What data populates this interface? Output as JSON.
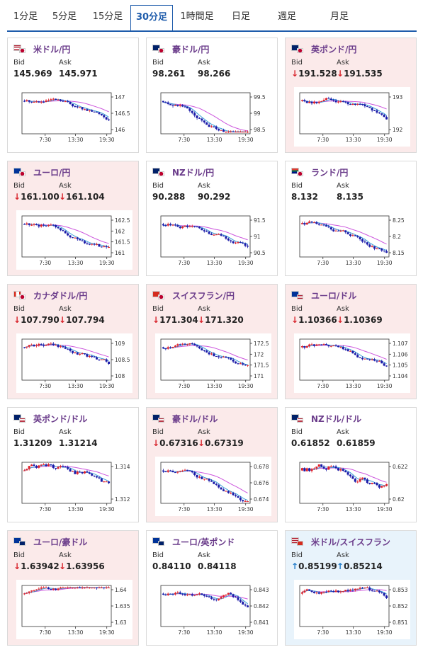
{
  "tabs": [
    {
      "label": "1分足",
      "active": false
    },
    {
      "label": "5分足",
      "active": false
    },
    {
      "label": "15分足",
      "active": false
    },
    {
      "label": "30分足",
      "active": true
    },
    {
      "label": "1時間足",
      "active": false
    },
    {
      "label": "日足",
      "active": false
    },
    {
      "label": "週足",
      "active": false
    },
    {
      "label": "月足",
      "active": false
    }
  ],
  "labels": {
    "bid": "Bid",
    "ask": "Ask"
  },
  "colors": {
    "accent": "#1f5cab",
    "title": "#6a3b8a",
    "down_bg": "#fbeaea",
    "up_bg": "#e8f3fb",
    "down_arrow": "#d8242c",
    "up_arrow": "#1f7ac8",
    "candle_up": "#e0202a",
    "candle_down": "#1a1aa8",
    "ma_short": "#3aa0d8",
    "ma_long": "#cc55dd"
  },
  "cards": [
    {
      "pair": "米ドル/円",
      "flag": "us-jp-flag-icon",
      "state": "none",
      "bid": "145.969",
      "ask": "145.971",
      "yticks": [
        "147",
        "146.5",
        "146"
      ],
      "xticks": [
        "7:30",
        "13:30",
        "19:30"
      ]
    },
    {
      "pair": "豪ドル/円",
      "flag": "au-jp-flag-icon",
      "state": "none",
      "bid": "98.261",
      "ask": "98.266",
      "yticks": [
        "99.5",
        "99",
        "98.5"
      ],
      "xticks": [
        "7:30",
        "13:30",
        "19:30"
      ]
    },
    {
      "pair": "英ポンド/円",
      "flag": "gb-jp-flag-icon",
      "state": "down",
      "bid": "191.528",
      "ask": "191.535",
      "yticks": [
        "193",
        "192"
      ],
      "xticks": [
        "7:30",
        "13:30",
        "19:30"
      ]
    },
    {
      "pair": "ユーロ/円",
      "flag": "eu-jp-flag-icon",
      "state": "down",
      "bid": "161.100",
      "ask": "161.104",
      "yticks": [
        "162.5",
        "162",
        "161.5",
        "161"
      ],
      "xticks": [
        "7:30",
        "13:30",
        "19:30"
      ]
    },
    {
      "pair": "NZドル/円",
      "flag": "nz-jp-flag-icon",
      "state": "none",
      "bid": "90.288",
      "ask": "90.292",
      "yticks": [
        "91.5",
        "91",
        "90.5"
      ],
      "xticks": [
        "7:30",
        "13:30",
        "19:30"
      ]
    },
    {
      "pair": "ランド/円",
      "flag": "za-jp-flag-icon",
      "state": "none",
      "bid": "8.132",
      "ask": "8.135",
      "yticks": [
        "8.25",
        "8.2",
        "8.15"
      ],
      "xticks": [
        "7:30",
        "13:30",
        "19:30"
      ]
    },
    {
      "pair": "カナダドル/円",
      "flag": "ca-jp-flag-icon",
      "state": "down",
      "bid": "107.790",
      "ask": "107.794",
      "yticks": [
        "109",
        "108.5",
        "108"
      ],
      "xticks": [
        "7:30",
        "13:30",
        "19:30"
      ]
    },
    {
      "pair": "スイスフラン/円",
      "flag": "ch-jp-flag-icon",
      "state": "down",
      "bid": "171.304",
      "ask": "171.320",
      "yticks": [
        "172.5",
        "172",
        "171.5",
        "171"
      ],
      "xticks": [
        "7:30",
        "13:30",
        "19:30"
      ]
    },
    {
      "pair": "ユーロ/ドル",
      "flag": "eu-us-flag-icon",
      "state": "down",
      "bid": "1.10366",
      "ask": "1.10369",
      "yticks": [
        "1.107",
        "1.106",
        "1.105",
        "1.104"
      ],
      "xticks": [
        "7:30",
        "13:30",
        "19:30"
      ]
    },
    {
      "pair": "英ポンド/ドル",
      "flag": "gb-us-flag-icon",
      "state": "none",
      "bid": "1.31209",
      "ask": "1.31214",
      "yticks": [
        "1.314",
        "1.312"
      ],
      "xticks": [
        "7:30",
        "13:30",
        "19:30"
      ]
    },
    {
      "pair": "豪ドル/ドル",
      "flag": "au-us-flag-icon",
      "state": "down",
      "bid": "0.67316",
      "ask": "0.67319",
      "yticks": [
        "0.678",
        "0.676",
        "0.674"
      ],
      "xticks": [
        "7:30",
        "13:30",
        "19:30"
      ]
    },
    {
      "pair": "NZドル/ドル",
      "flag": "nz-us-flag-icon",
      "state": "none",
      "bid": "0.61852",
      "ask": "0.61859",
      "yticks": [
        "0.622",
        "0.62"
      ],
      "xticks": [
        "7:30",
        "13:30",
        "19:30"
      ]
    },
    {
      "pair": "ユーロ/豪ドル",
      "flag": "eu-au-flag-icon",
      "state": "down",
      "bid": "1.63942",
      "ask": "1.63956",
      "yticks": [
        "1.64",
        "1.635",
        "1.63"
      ],
      "xticks": [
        "7:30",
        "13:30",
        "19:30"
      ]
    },
    {
      "pair": "ユーロ/英ポンド",
      "flag": "eu-gb-flag-icon",
      "state": "none",
      "bid": "0.84110",
      "ask": "0.84118",
      "yticks": [
        "0.843",
        "0.842",
        "0.841"
      ],
      "xticks": [
        "7:30",
        "13:30",
        "19:30"
      ]
    },
    {
      "pair": "米ドル/スイスフラン",
      "flag": "us-ch-flag-icon",
      "state": "up",
      "bid": "0.85199",
      "ask": "0.85214",
      "yticks": [
        "0.853",
        "0.852",
        "0.851"
      ],
      "xticks": [
        "7:30",
        "13:30",
        "19:30"
      ]
    }
  ]
}
